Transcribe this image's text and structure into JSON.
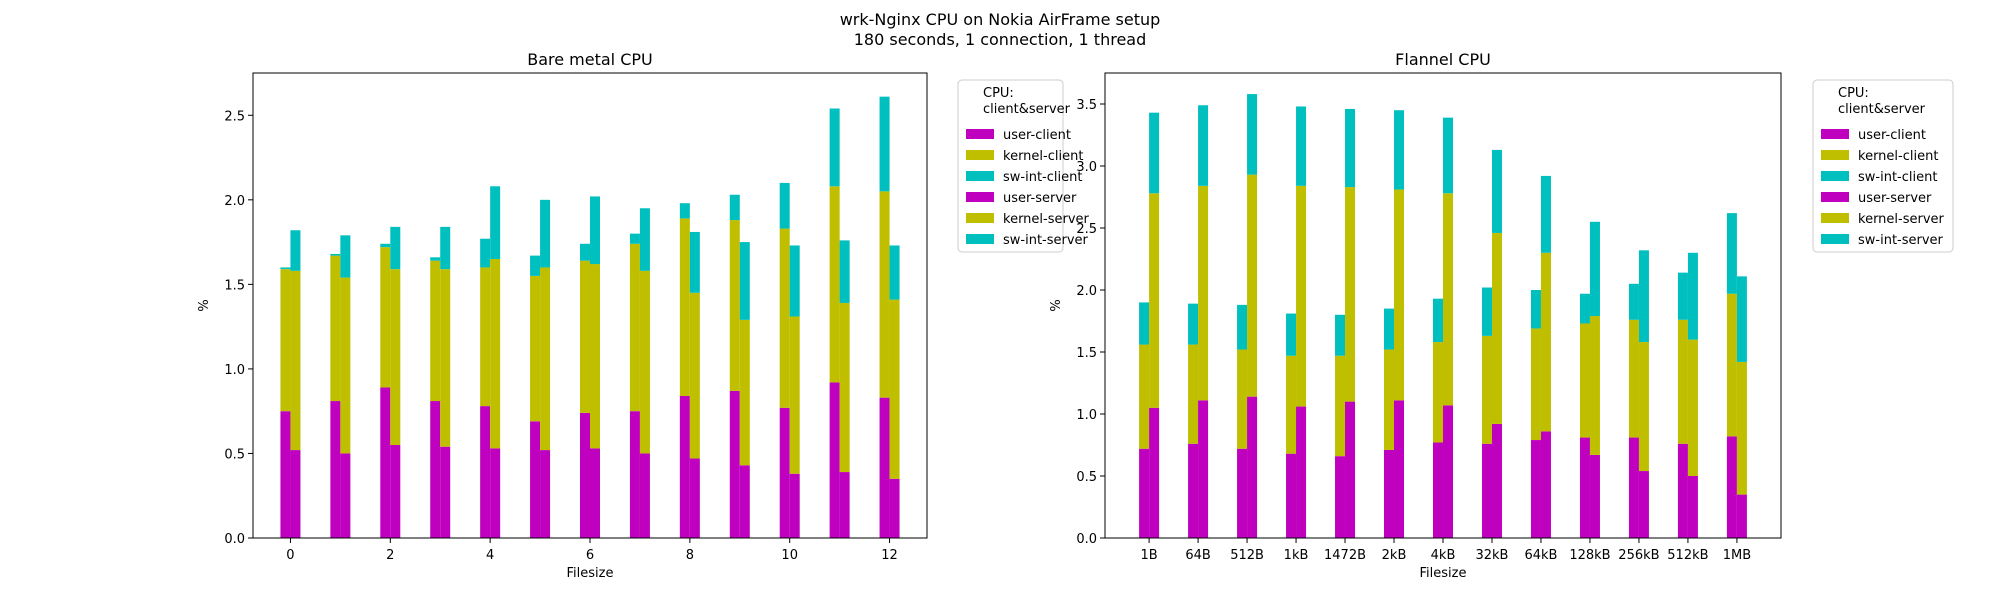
{
  "figure": {
    "title_line1": "wrk-Nginx CPU on Nokia AirFrame setup",
    "title_line2": "180 seconds, 1 connection, 1 thread"
  },
  "chart_data": [
    {
      "type": "bar",
      "stacked": true,
      "grouped": true,
      "title": "Bare metal CPU",
      "xlabel": "Filesize",
      "ylabel": "%",
      "x": [
        0,
        1,
        2,
        3,
        4,
        5,
        6,
        7,
        8,
        9,
        10,
        11,
        12
      ],
      "xticks": [
        0,
        2,
        4,
        6,
        8,
        10,
        12
      ],
      "xlim": [
        -0.75,
        12.75
      ],
      "ylim": [
        0,
        2.75
      ],
      "yticks": [
        0.0,
        0.5,
        1.0,
        1.5,
        2.0,
        2.5
      ],
      "legend": {
        "title": "CPU:\nclient&server",
        "placement": "outside-right"
      },
      "groups": [
        {
          "name": "client",
          "series": [
            {
              "name": "user-client",
              "color": "#bf00bf",
              "values": [
                0.75,
                0.81,
                0.89,
                0.81,
                0.78,
                0.69,
                0.74,
                0.75,
                0.84,
                0.87,
                0.77,
                0.92,
                0.83
              ]
            },
            {
              "name": "kernel-client",
              "color": "#bfbf00",
              "values": [
                0.84,
                0.86,
                0.83,
                0.83,
                0.82,
                0.86,
                0.9,
                0.99,
                1.05,
                1.01,
                1.06,
                1.16,
                1.22
              ]
            },
            {
              "name": "sw-int-client",
              "color": "#00bfbf",
              "values": [
                0.01,
                0.01,
                0.02,
                0.02,
                0.17,
                0.12,
                0.1,
                0.06,
                0.09,
                0.15,
                0.27,
                0.46,
                0.56
              ]
            }
          ]
        },
        {
          "name": "server",
          "series": [
            {
              "name": "user-server",
              "color": "#bf00bf",
              "values": [
                0.52,
                0.5,
                0.55,
                0.54,
                0.53,
                0.52,
                0.53,
                0.5,
                0.47,
                0.43,
                0.38,
                0.39,
                0.35
              ]
            },
            {
              "name": "kernel-server",
              "color": "#bfbf00",
              "values": [
                1.06,
                1.04,
                1.04,
                1.05,
                1.12,
                1.08,
                1.09,
                1.08,
                0.98,
                0.86,
                0.93,
                1.0,
                1.06
              ]
            },
            {
              "name": "sw-int-server",
              "color": "#00bfbf",
              "values": [
                0.24,
                0.25,
                0.25,
                0.25,
                0.43,
                0.4,
                0.4,
                0.37,
                0.36,
                0.46,
                0.42,
                0.37,
                0.32
              ]
            }
          ]
        }
      ]
    },
    {
      "type": "bar",
      "stacked": true,
      "grouped": true,
      "title": "Flannel CPU",
      "xlabel": "Filesize",
      "ylabel": "%",
      "categories": [
        "1B",
        "64B",
        "512B",
        "1kB",
        "1472B",
        "2kB",
        "4kB",
        "32kB",
        "64kB",
        "128kB",
        "256kB",
        "512kB",
        "1MB"
      ],
      "ylim": [
        0,
        3.75
      ],
      "yticks": [
        0.0,
        0.5,
        1.0,
        1.5,
        2.0,
        2.5,
        3.0,
        3.5
      ],
      "legend": {
        "title": "CPU:\nclient&server",
        "placement": "outside-right"
      },
      "groups": [
        {
          "name": "client",
          "series": [
            {
              "name": "user-client",
              "color": "#bf00bf",
              "values": [
                0.72,
                0.76,
                0.72,
                0.68,
                0.66,
                0.71,
                0.77,
                0.76,
                0.79,
                0.81,
                0.81,
                0.76,
                0.82
              ]
            },
            {
              "name": "kernel-client",
              "color": "#bfbf00",
              "values": [
                0.84,
                0.8,
                0.8,
                0.79,
                0.81,
                0.81,
                0.81,
                0.87,
                0.9,
                0.92,
                0.95,
                1.0,
                1.15
              ]
            },
            {
              "name": "sw-int-client",
              "color": "#00bfbf",
              "values": [
                0.34,
                0.33,
                0.36,
                0.34,
                0.33,
                0.33,
                0.35,
                0.39,
                0.31,
                0.24,
                0.29,
                0.38,
                0.65
              ]
            }
          ]
        },
        {
          "name": "server",
          "series": [
            {
              "name": "user-server",
              "color": "#bf00bf",
              "values": [
                1.05,
                1.11,
                1.14,
                1.06,
                1.1,
                1.11,
                1.07,
                0.92,
                0.86,
                0.67,
                0.54,
                0.5,
                0.35
              ]
            },
            {
              "name": "kernel-server",
              "color": "#bfbf00",
              "values": [
                1.73,
                1.73,
                1.79,
                1.78,
                1.73,
                1.7,
                1.71,
                1.54,
                1.44,
                1.12,
                1.04,
                1.1,
                1.07
              ]
            },
            {
              "name": "sw-int-server",
              "color": "#00bfbf",
              "values": [
                0.65,
                0.65,
                0.65,
                0.64,
                0.63,
                0.64,
                0.61,
                0.67,
                0.62,
                0.76,
                0.74,
                0.7,
                0.69
              ]
            }
          ]
        }
      ]
    }
  ]
}
